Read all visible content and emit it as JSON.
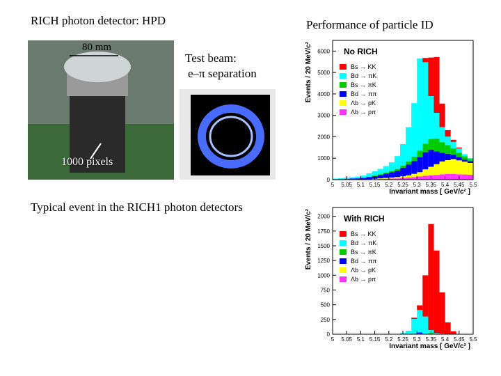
{
  "slide": {
    "title_left": "RICH photon detector:  HPD",
    "title_right": "Performance of particle ID",
    "dimension_label": "80 mm",
    "test_beam_1": "Test beam:",
    "test_beam_2": "e–π separation",
    "pixels_label": "1000 pixels",
    "caption": "Typical event in the RICH1 photon detectors"
  },
  "chart_data": [
    {
      "type": "stacked-histogram",
      "title": "No RICH",
      "xlabel": "Invariant mass  [ GeV/c² ]",
      "ylabel": "Events  /  20 MeV/c²",
      "bins": [
        5.0,
        5.02,
        5.04,
        5.06,
        5.08,
        5.1,
        5.12,
        5.14,
        5.16,
        5.18,
        5.2,
        5.22,
        5.24,
        5.26,
        5.28,
        5.3,
        5.32,
        5.34,
        5.36,
        5.38,
        5.4,
        5.42,
        5.44,
        5.46,
        5.48,
        5.5
      ],
      "xlim": [
        5.0,
        5.5
      ],
      "xticks": [
        5,
        5.05,
        5.1,
        5.15,
        5.2,
        5.25,
        5.3,
        5.35,
        5.4,
        5.45,
        5.5
      ],
      "ylim": [
        0,
        6500
      ],
      "yticks": [
        0,
        1000,
        2000,
        3000,
        4000,
        5000,
        6000
      ],
      "series": [
        {
          "name": "Λb → pπ",
          "color": "#ff33ff",
          "values": [
            0,
            0,
            0,
            0,
            0,
            0,
            10,
            20,
            30,
            40,
            50,
            60,
            80,
            100,
            120,
            150,
            180,
            200,
            220,
            250,
            260,
            260,
            250,
            240,
            230
          ]
        },
        {
          "name": "Λb → pK",
          "color": "#ffff00",
          "values": [
            0,
            0,
            0,
            0,
            0,
            0,
            10,
            20,
            30,
            40,
            50,
            60,
            80,
            100,
            150,
            200,
            300,
            400,
            500,
            600,
            650,
            700,
            650,
            600,
            550
          ]
        },
        {
          "name": "Bd → ππ",
          "color": "#0000ff",
          "values": [
            20,
            30,
            40,
            50,
            60,
            80,
            100,
            120,
            150,
            200,
            250,
            300,
            400,
            500,
            600,
            700,
            800,
            800,
            600,
            400,
            300,
            200,
            150,
            100,
            80
          ]
        },
        {
          "name": "Bs → πK",
          "color": "#00cc00",
          "values": [
            0,
            0,
            0,
            0,
            0,
            10,
            20,
            30,
            40,
            50,
            60,
            80,
            100,
            150,
            200,
            300,
            400,
            500,
            600,
            500,
            400,
            300,
            200,
            150,
            100
          ]
        },
        {
          "name": "Bd → πK",
          "color": "#00ffff",
          "values": [
            30,
            40,
            50,
            60,
            80,
            100,
            150,
            200,
            250,
            300,
            400,
            600,
            1000,
            1600,
            2500,
            4300,
            3800,
            2000,
            1200,
            700,
            400,
            300,
            200,
            100,
            50
          ]
        },
        {
          "name": "Bs → KK",
          "color": "#ff0000",
          "values": [
            0,
            0,
            0,
            0,
            0,
            0,
            0,
            0,
            0,
            0,
            0,
            0,
            0,
            0,
            0,
            0,
            200,
            1800,
            2600,
            1100,
            300,
            100,
            50,
            0,
            0
          ]
        }
      ]
    },
    {
      "type": "stacked-histogram",
      "title": "With RICH",
      "xlabel": "Invariant mass  [ GeV/c² ]",
      "ylabel": "Events  /  20 MeV/c²",
      "bins": [
        5.0,
        5.02,
        5.04,
        5.06,
        5.08,
        5.1,
        5.12,
        5.14,
        5.16,
        5.18,
        5.2,
        5.22,
        5.24,
        5.26,
        5.28,
        5.3,
        5.32,
        5.34,
        5.36,
        5.38,
        5.4,
        5.42,
        5.44,
        5.46,
        5.48,
        5.5
      ],
      "xlim": [
        5.0,
        5.5
      ],
      "xticks": [
        5,
        5.05,
        5.1,
        5.15,
        5.2,
        5.25,
        5.3,
        5.35,
        5.4,
        5.45,
        5.5
      ],
      "ylim": [
        0,
        2150
      ],
      "yticks": [
        0,
        250,
        500,
        750,
        1000,
        1250,
        1500,
        1750,
        2000
      ],
      "series": [
        {
          "name": "Λb → pπ",
          "color": "#ff33ff",
          "values": [
            0,
            0,
            0,
            0,
            0,
            0,
            0,
            0,
            0,
            0,
            0,
            0,
            0,
            0,
            0,
            10,
            0,
            0,
            0,
            0,
            0,
            0,
            0,
            0,
            0
          ]
        },
        {
          "name": "Λb → pK",
          "color": "#ffff00",
          "values": [
            0,
            0,
            0,
            0,
            0,
            0,
            0,
            0,
            0,
            0,
            0,
            0,
            0,
            0,
            0,
            0,
            0,
            0,
            0,
            10,
            0,
            0,
            0,
            0,
            0
          ]
        },
        {
          "name": "Bd → ππ",
          "color": "#0000ff",
          "values": [
            0,
            0,
            0,
            0,
            0,
            0,
            0,
            0,
            0,
            0,
            0,
            0,
            0,
            0,
            10,
            20,
            0,
            0,
            0,
            0,
            0,
            0,
            0,
            0,
            0
          ]
        },
        {
          "name": "Bs → πK",
          "color": "#00cc00",
          "values": [
            0,
            0,
            0,
            0,
            0,
            0,
            0,
            0,
            0,
            0,
            0,
            0,
            0,
            0,
            0,
            0,
            0,
            20,
            0,
            0,
            0,
            0,
            0,
            0,
            0
          ]
        },
        {
          "name": "Bd → πK",
          "color": "#00ffff",
          "values": [
            0,
            0,
            0,
            0,
            0,
            0,
            0,
            0,
            0,
            0,
            0,
            0,
            20,
            60,
            250,
            380,
            300,
            50,
            20,
            0,
            0,
            0,
            0,
            0,
            0
          ]
        },
        {
          "name": "Bs → KK",
          "color": "#ff0000",
          "values": [
            0,
            0,
            0,
            0,
            0,
            0,
            0,
            0,
            0,
            0,
            0,
            0,
            0,
            0,
            20,
            80,
            700,
            1800,
            1400,
            700,
            200,
            50,
            0,
            0,
            0
          ]
        }
      ]
    }
  ]
}
